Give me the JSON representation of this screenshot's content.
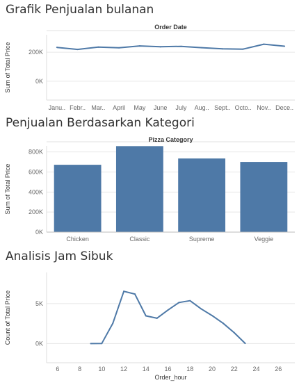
{
  "sections": {
    "monthly": {
      "title": "Grafik Penjualan bulanan"
    },
    "category": {
      "title": "Penjualan Berdasarkan Kategori"
    },
    "hour": {
      "title": "Analisis Jam Sibuk"
    }
  },
  "colors": {
    "line": "#4e79a7",
    "bar": "#4e79a7",
    "gridline": "#e6e6e6"
  },
  "chart_data": [
    {
      "type": "line",
      "header": "Order Date",
      "ylabel": "Sum of Total Price",
      "categories": [
        "Janu..",
        "Febr..",
        "Mar..",
        "April",
        "May",
        "June",
        "July",
        "Aug..",
        "Sept..",
        "Octo..",
        "Nov..",
        "Dece.."
      ],
      "values": [
        233000,
        219000,
        235000,
        230000,
        243000,
        237000,
        240000,
        231000,
        223000,
        221000,
        255000,
        241000
      ],
      "yticks": [
        {
          "v": 0,
          "label": "0K"
        },
        {
          "v": 200000,
          "label": "200K"
        }
      ],
      "ylim": [
        -130000,
        320000
      ],
      "grid": false
    },
    {
      "type": "bar",
      "header": "Pizza Category",
      "ylabel": "Sum of Total Price",
      "categories": [
        "Chicken",
        "Classic",
        "Supreme",
        "Veggie"
      ],
      "values": [
        672000,
        858000,
        735000,
        700000
      ],
      "yticks": [
        {
          "v": 0,
          "label": "0K"
        },
        {
          "v": 200000,
          "label": "200K"
        },
        {
          "v": 400000,
          "label": "400K"
        },
        {
          "v": 600000,
          "label": "600K"
        },
        {
          "v": 800000,
          "label": "800K"
        }
      ],
      "ylim": [
        0,
        860000
      ],
      "grid": true
    },
    {
      "type": "line",
      "ylabel": "Count of Total Price",
      "xlabel": "Order_hour",
      "x": [
        9,
        10,
        11,
        12,
        13,
        14,
        15,
        16,
        17,
        18,
        19,
        20,
        21,
        22,
        23
      ],
      "values": [
        1,
        8,
        2520,
        6540,
        6200,
        3470,
        3170,
        4190,
        5140,
        5360,
        4350,
        3500,
        2540,
        1370,
        28
      ],
      "xticks": [
        6,
        8,
        10,
        12,
        14,
        16,
        18,
        20,
        22,
        24,
        26
      ],
      "xlim": [
        5,
        27.5
      ],
      "yticks": [
        {
          "v": 0,
          "label": "0K"
        },
        {
          "v": 5000,
          "label": "5K"
        }
      ],
      "ylim": [
        -2400,
        8900
      ],
      "grid": false
    }
  ]
}
